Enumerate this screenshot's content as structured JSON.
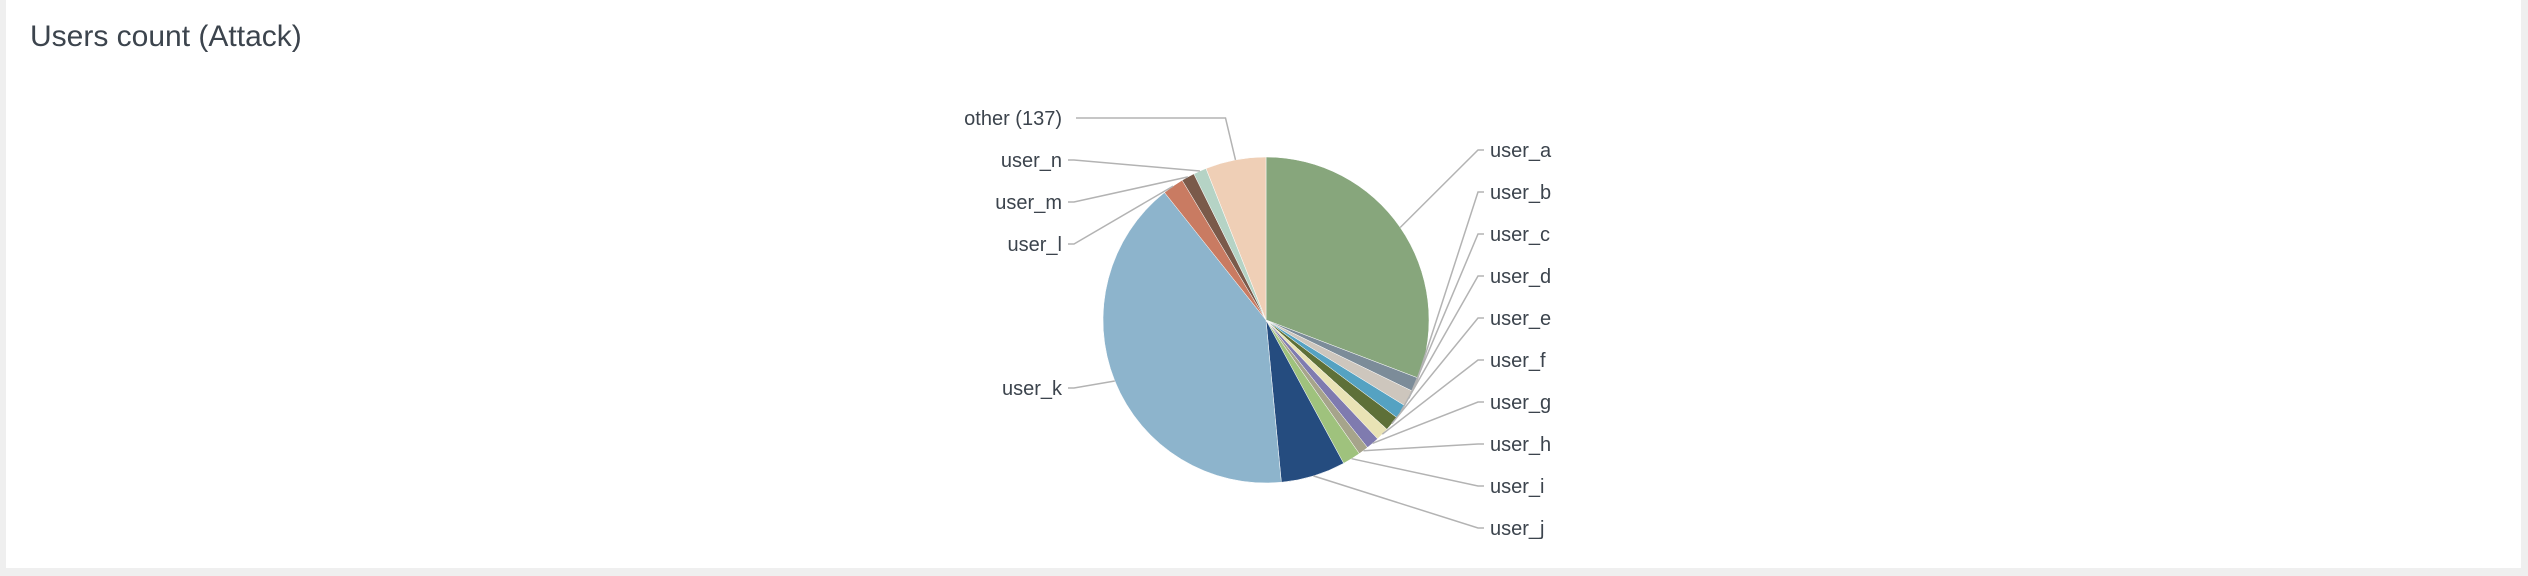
{
  "panel": {
    "title": "Users count (Attack)"
  },
  "chart_data": {
    "type": "pie",
    "title": "Users count (Attack)",
    "unit": "share of users count (%)",
    "slices": [
      {
        "label": "user_a",
        "value": 30.8,
        "color": "#87a67c"
      },
      {
        "label": "user_b",
        "value": 1.4,
        "color": "#7c8c99"
      },
      {
        "label": "user_c",
        "value": 1.6,
        "color": "#cdc6bd"
      },
      {
        "label": "user_d",
        "value": 1.4,
        "color": "#55a2c2"
      },
      {
        "label": "user_e",
        "value": 1.5,
        "color": "#5e7038"
      },
      {
        "label": "user_f",
        "value": 1.3,
        "color": "#e9e3b5"
      },
      {
        "label": "user_g",
        "value": 1.3,
        "color": "#7f7baf"
      },
      {
        "label": "user_h",
        "value": 1.0,
        "color": "#a6a48b"
      },
      {
        "label": "user_i",
        "value": 1.8,
        "color": "#9fc27d"
      },
      {
        "label": "user_j",
        "value": 6.4,
        "color": "#254c7f"
      },
      {
        "label": "user_k",
        "value": 40.8,
        "color": "#8db4cc"
      },
      {
        "label": "user_l",
        "value": 2.1,
        "color": "#c97b62"
      },
      {
        "label": "user_m",
        "value": 1.3,
        "color": "#7a5a4a"
      },
      {
        "label": "user_n",
        "value": 1.3,
        "color": "#b5d3c5"
      },
      {
        "label": "other (137)",
        "value": 6.0,
        "color": "#efcfb6"
      }
    ],
    "start_angle_deg": 0,
    "direction": "clockwise",
    "legend": "none (leader-line labels)"
  }
}
